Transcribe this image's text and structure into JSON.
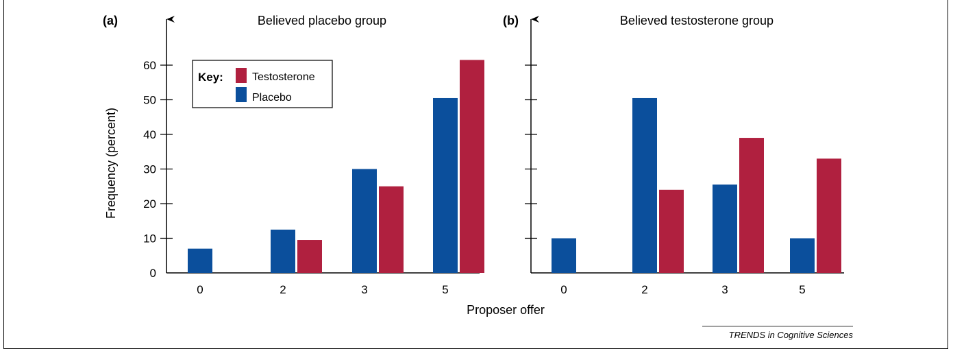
{
  "chart_data": [
    {
      "type": "bar",
      "panel_label": "(a)",
      "title": "Believed placebo group",
      "categories": [
        "0",
        "2",
        "3",
        "5"
      ],
      "series": [
        {
          "name": "Placebo",
          "color": "#0b4f9c",
          "values": [
            7,
            12.5,
            30,
            50.5
          ]
        },
        {
          "name": "Testosterone",
          "color": "#b0203f",
          "values": [
            0,
            9.5,
            25,
            61.5
          ]
        }
      ],
      "ylabel": "Frequency (percent)",
      "yticks": [
        0,
        10,
        20,
        30,
        40,
        50,
        60
      ],
      "ylim": [
        0,
        70
      ],
      "legend": {
        "title": "Key:",
        "placement": "top-left",
        "entries": [
          {
            "label": "Testosterone",
            "color": "#b0203f"
          },
          {
            "label": "Placebo",
            "color": "#0b4f9c"
          }
        ]
      }
    },
    {
      "type": "bar",
      "panel_label": "(b)",
      "title": "Believed testosterone group",
      "categories": [
        "0",
        "2",
        "3",
        "5"
      ],
      "series": [
        {
          "name": "Placebo",
          "color": "#0b4f9c",
          "values": [
            10,
            50.5,
            25.5,
            10
          ]
        },
        {
          "name": "Testosterone",
          "color": "#b0203f",
          "values": [
            0,
            24,
            39,
            33
          ]
        }
      ],
      "ylim": [
        0,
        70
      ]
    }
  ],
  "xlabel": "Proposer offer",
  "credit": "TRENDS in Cognitive Sciences"
}
